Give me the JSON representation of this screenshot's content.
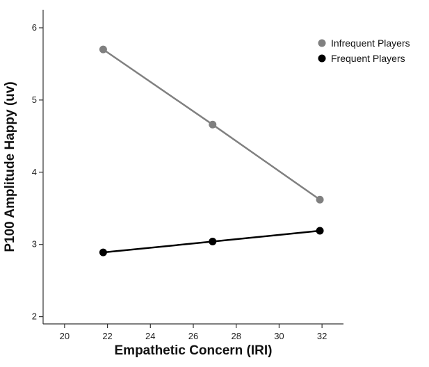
{
  "chart_data": {
    "type": "line",
    "xlabel": "Empathetic Concern (IRI)",
    "ylabel": "P100 Amplitude Happy (uv)",
    "xlim": [
      19,
      33
    ],
    "ylim": [
      1.9,
      6.25
    ],
    "x_ticks": [
      20,
      22,
      24,
      26,
      28,
      30,
      32
    ],
    "y_ticks": [
      2,
      3,
      4,
      5,
      6
    ],
    "legend_position": "top-right",
    "series": [
      {
        "name": "Infrequent Players",
        "color": "#808080",
        "x": [
          21.8,
          26.9,
          31.9
        ],
        "y": [
          5.7,
          4.66,
          3.62
        ]
      },
      {
        "name": "Frequent Players",
        "color": "#000000",
        "x": [
          21.8,
          26.9,
          31.9
        ],
        "y": [
          2.89,
          3.04,
          3.19
        ]
      }
    ]
  }
}
